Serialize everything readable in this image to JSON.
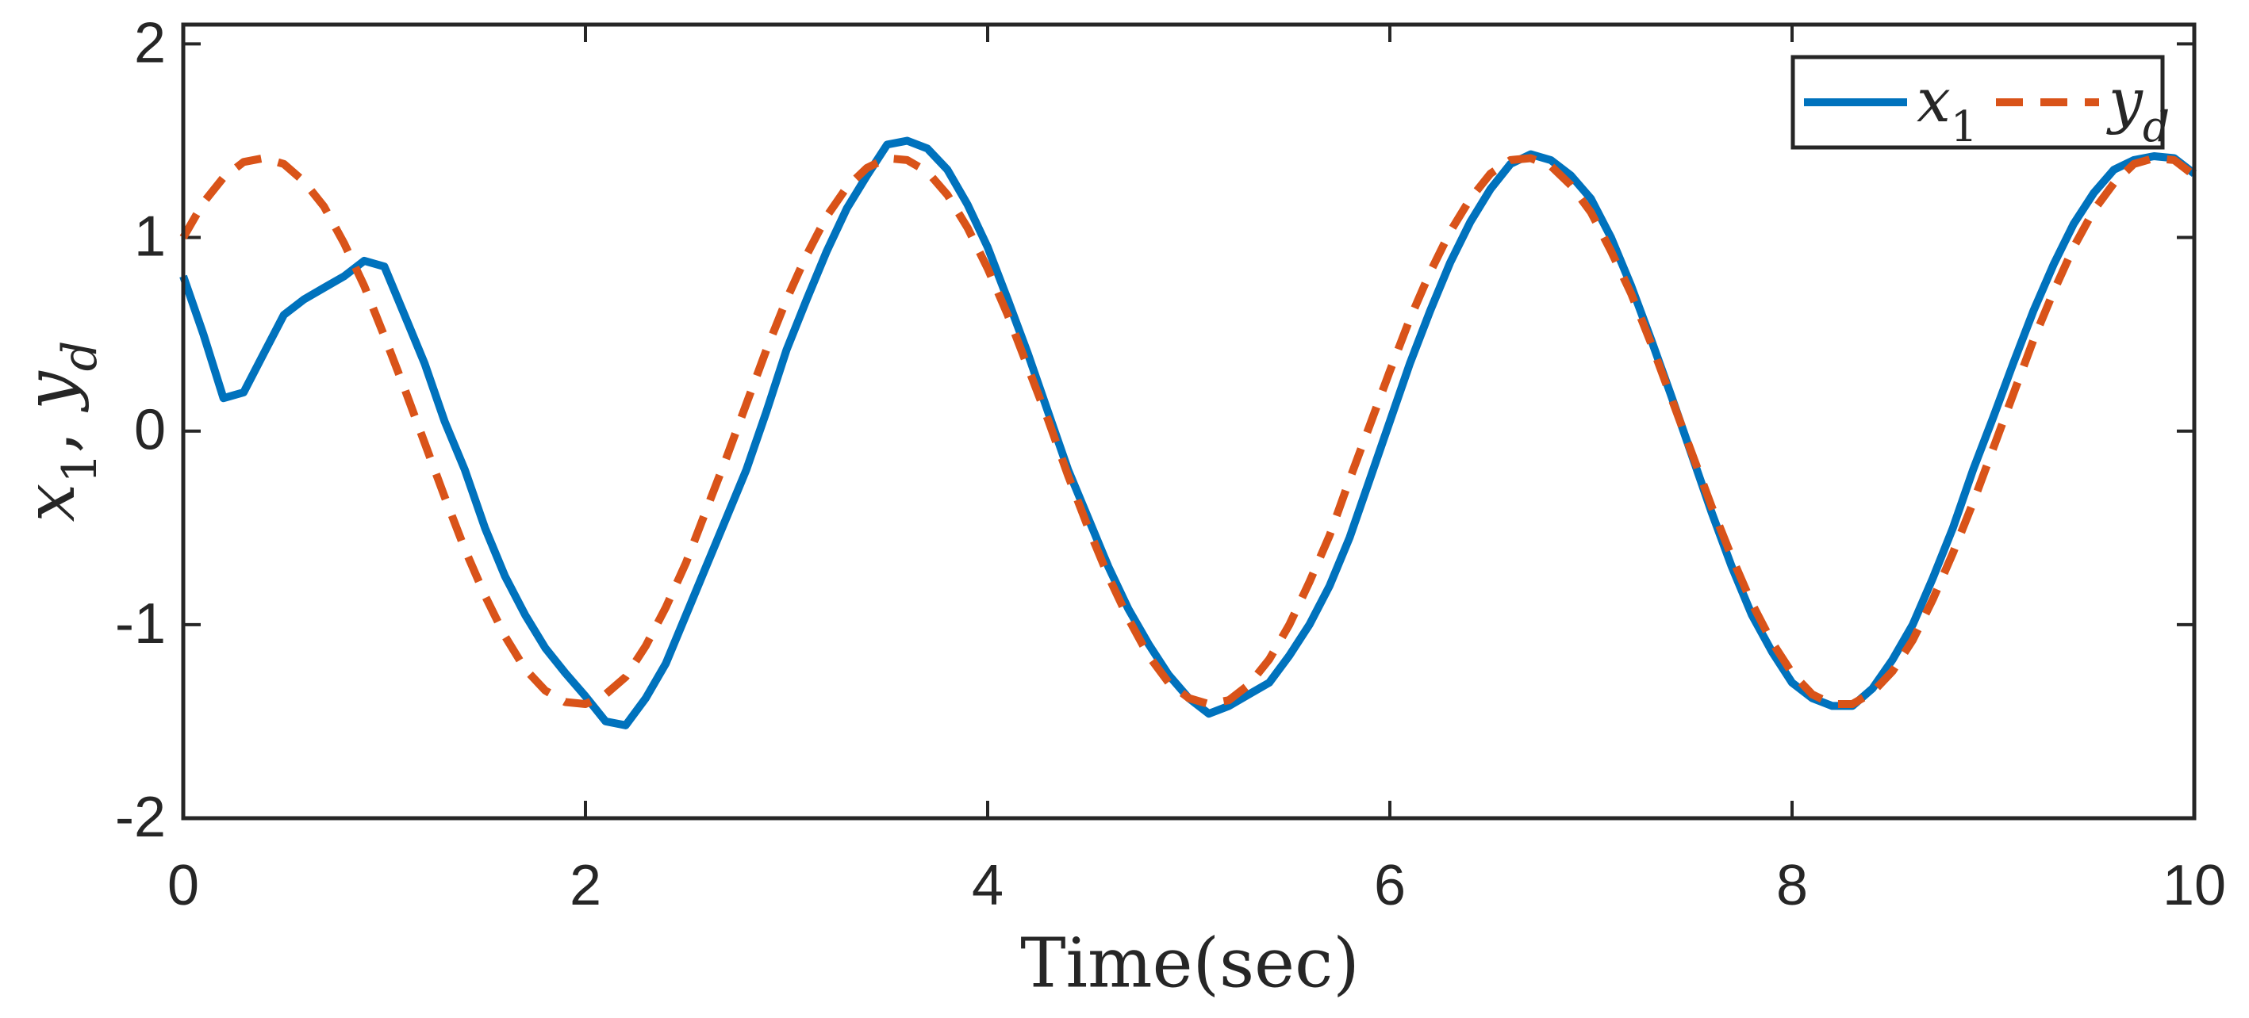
{
  "chart_data": {
    "type": "line",
    "xlabel": "Time(sec)",
    "ylabel": "x1, yd",
    "x": [
      0,
      0.1,
      0.2,
      0.3,
      0.4,
      0.5,
      0.6,
      0.7,
      0.8,
      0.9,
      1,
      1.1,
      1.2,
      1.3,
      1.4,
      1.5,
      1.6,
      1.7,
      1.8,
      1.9,
      2,
      2.1,
      2.2,
      2.3,
      2.4,
      2.5,
      2.6,
      2.7,
      2.8,
      2.9,
      3,
      3.1,
      3.2,
      3.3,
      3.4,
      3.5,
      3.6,
      3.7,
      3.8,
      3.9,
      4,
      4.1,
      4.2,
      4.3,
      4.4,
      4.5,
      4.6,
      4.7,
      4.8,
      4.9,
      5,
      5.1,
      5.2,
      5.3,
      5.4,
      5.5,
      5.6,
      5.7,
      5.8,
      5.9,
      6,
      6.1,
      6.2,
      6.3,
      6.4,
      6.5,
      6.6,
      6.7,
      6.8,
      6.9,
      7,
      7.1,
      7.2,
      7.3,
      7.4,
      7.5,
      7.6,
      7.7,
      7.8,
      7.9,
      8,
      8.1,
      8.2,
      8.3,
      8.4,
      8.5,
      8.6,
      8.7,
      8.8,
      8.9,
      9,
      9.1,
      9.2,
      9.3,
      9.4,
      9.5,
      9.6,
      9.7,
      9.8,
      9.9,
      10
    ],
    "series": [
      {
        "name": "x1",
        "color": "#0072BD",
        "dash": false,
        "values": [
          0.8,
          0.5,
          0.17,
          0.2,
          0.4,
          0.6,
          0.68,
          0.74,
          0.8,
          0.88,
          0.85,
          0.6,
          0.35,
          0.05,
          -0.2,
          -0.5,
          -0.75,
          -0.95,
          -1.12,
          -1.25,
          -1.37,
          -1.5,
          -1.52,
          -1.38,
          -1.2,
          -0.95,
          -0.7,
          -0.45,
          -0.2,
          0.1,
          0.42,
          0.68,
          0.93,
          1.15,
          1.32,
          1.48,
          1.5,
          1.46,
          1.35,
          1.17,
          0.95,
          0.68,
          0.4,
          0.1,
          -0.2,
          -0.45,
          -0.7,
          -0.92,
          -1.1,
          -1.26,
          -1.38,
          -1.46,
          -1.42,
          -1.36,
          -1.3,
          -1.16,
          -1.0,
          -0.8,
          -0.55,
          -0.25,
          0.05,
          0.35,
          0.62,
          0.87,
          1.08,
          1.25,
          1.38,
          1.43,
          1.4,
          1.32,
          1.2,
          1.0,
          0.75,
          0.47,
          0.18,
          -0.12,
          -0.42,
          -0.7,
          -0.95,
          -1.14,
          -1.3,
          -1.38,
          -1.42,
          -1.42,
          -1.33,
          -1.18,
          -1.0,
          -0.76,
          -0.5,
          -0.2,
          0.07,
          0.35,
          0.62,
          0.86,
          1.07,
          1.23,
          1.35,
          1.4,
          1.42,
          1.41,
          1.33
        ]
      },
      {
        "name": "yd",
        "color": "#D95319",
        "dash": true,
        "values": [
          1.0,
          1.18,
          1.31,
          1.39,
          1.41,
          1.38,
          1.29,
          1.16,
          0.97,
          0.75,
          0.49,
          0.22,
          -0.06,
          -0.34,
          -0.61,
          -0.85,
          -1.06,
          -1.23,
          -1.34,
          -1.4,
          -1.41,
          -1.36,
          -1.27,
          -1.11,
          -0.91,
          -0.68,
          -0.41,
          -0.14,
          0.14,
          0.42,
          0.68,
          0.91,
          1.11,
          1.26,
          1.36,
          1.41,
          1.4,
          1.34,
          1.22,
          1.05,
          0.84,
          0.6,
          0.33,
          0.06,
          -0.23,
          -0.5,
          -0.75,
          -0.97,
          -1.16,
          -1.3,
          -1.38,
          -1.41,
          -1.39,
          -1.31,
          -1.18,
          -1.0,
          -0.78,
          -0.54,
          -0.25,
          0.03,
          0.31,
          0.58,
          0.82,
          1.03,
          1.2,
          1.33,
          1.4,
          1.41,
          1.37,
          1.27,
          1.13,
          0.93,
          0.71,
          0.45,
          0.17,
          -0.11,
          -0.39,
          -0.65,
          -0.89,
          -1.09,
          -1.25,
          -1.36,
          -1.41,
          -1.41,
          -1.35,
          -1.24,
          -1.08,
          -0.87,
          -0.63,
          -0.37,
          -0.09,
          0.19,
          0.47,
          0.72,
          0.95,
          1.14,
          1.28,
          1.38,
          1.41,
          1.4,
          1.32
        ]
      }
    ],
    "xlim": [
      0,
      10
    ],
    "ylim": [
      -2,
      2.1
    ],
    "xticks": [
      0,
      2,
      4,
      6,
      8,
      10
    ],
    "yticks": [
      -2,
      -1,
      0,
      1,
      2
    ],
    "grid": false,
    "legend": "top-right"
  }
}
